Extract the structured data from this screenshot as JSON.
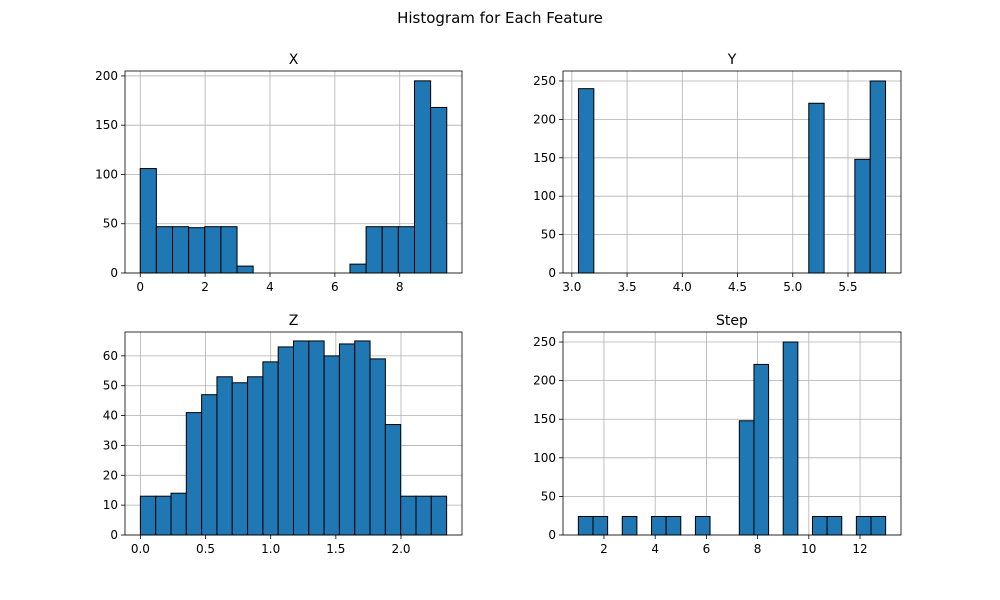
{
  "figure": {
    "title": "Histogram for Each Feature"
  },
  "style": {
    "bar_color": "#1f77b4",
    "edge_color": "#000000",
    "grid_color": "#b0b0b0"
  },
  "chart_data": [
    {
      "type": "bar",
      "title": "X",
      "grid": true,
      "bin_range": [
        0,
        9.45
      ],
      "values": [
        106,
        47,
        47,
        46,
        47,
        47,
        7,
        0,
        0,
        0,
        0,
        0,
        0,
        9,
        47,
        47,
        47,
        195,
        168
      ],
      "xlim": [
        -0.47,
        9.92
      ],
      "ylim": [
        0,
        205
      ],
      "xticks": [
        0,
        2,
        4,
        6,
        8
      ],
      "xtick_labels": [
        "0",
        "2",
        "4",
        "6",
        "8"
      ],
      "yticks": [
        0,
        50,
        100,
        150,
        200
      ],
      "ytick_labels": [
        "0",
        "50",
        "100",
        "150",
        "200"
      ]
    },
    {
      "type": "bar",
      "title": "Y",
      "grid": true,
      "bin_range": [
        3.06,
        5.84
      ],
      "values": [
        240,
        0,
        0,
        0,
        0,
        0,
        0,
        0,
        0,
        0,
        0,
        0,
        0,
        0,
        0,
        221,
        0,
        0,
        148,
        250
      ],
      "xlim": [
        2.92,
        5.98
      ],
      "ylim": [
        0,
        263
      ],
      "xticks": [
        3.0,
        3.5,
        4.0,
        4.5,
        5.0,
        5.5
      ],
      "xtick_labels": [
        "3.0",
        "3.5",
        "4.0",
        "4.5",
        "5.0",
        "5.5"
      ],
      "yticks": [
        0,
        50,
        100,
        150,
        200,
        250
      ],
      "ytick_labels": [
        "0",
        "50",
        "100",
        "150",
        "200",
        "250"
      ]
    },
    {
      "type": "bar",
      "title": "Z",
      "grid": true,
      "bin_range": [
        0,
        2.35
      ],
      "values": [
        13,
        13,
        14,
        41,
        47,
        53,
        51,
        53,
        58,
        63,
        65,
        65,
        60,
        64,
        65,
        59,
        37,
        13,
        13,
        13
      ],
      "xlim": [
        -0.118,
        2.468
      ],
      "ylim": [
        0,
        68
      ],
      "xticks": [
        0.0,
        0.5,
        1.0,
        1.5,
        2.0
      ],
      "xtick_labels": [
        "0.0",
        "0.5",
        "1.0",
        "1.5",
        "2.0"
      ],
      "yticks": [
        0,
        10,
        20,
        30,
        40,
        50,
        60
      ],
      "ytick_labels": [
        "0",
        "10",
        "20",
        "30",
        "40",
        "50",
        "60"
      ]
    },
    {
      "type": "bar",
      "title": "Step",
      "grid": true,
      "bin_range": [
        1,
        13
      ],
      "values": [
        24,
        24,
        0,
        24,
        0,
        24,
        24,
        0,
        24,
        0,
        0,
        148,
        221,
        0,
        250,
        0,
        24,
        24,
        0,
        24,
        24
      ],
      "xlim": [
        0.4,
        13.6
      ],
      "ylim": [
        0,
        263
      ],
      "xticks": [
        2,
        4,
        6,
        8,
        10,
        12
      ],
      "xtick_labels": [
        "2",
        "4",
        "6",
        "8",
        "10",
        "12"
      ],
      "yticks": [
        0,
        50,
        100,
        150,
        200,
        250
      ],
      "ytick_labels": [
        "0",
        "50",
        "100",
        "150",
        "200",
        "250"
      ]
    }
  ]
}
